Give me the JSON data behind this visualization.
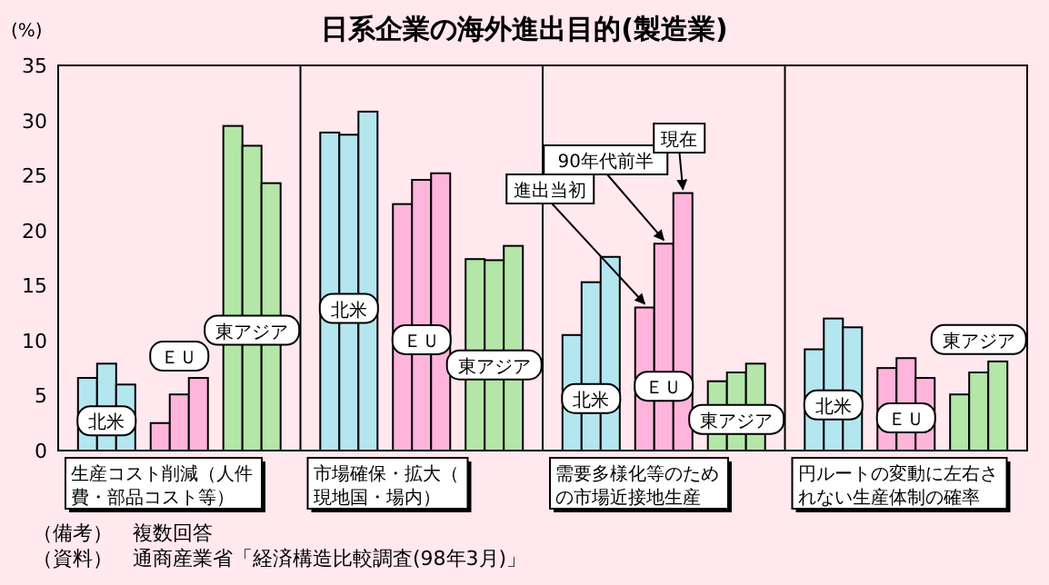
{
  "chart_data": {
    "type": "bar",
    "title": "日系企業の海外進出目的(製造業)",
    "ylabel": "(%)",
    "categories": [
      "北米",
      "ＥＵ",
      "東アジア",
      "北米",
      "ＥＵ",
      "東アジア",
      "北米",
      "ＥＵ",
      "東アジア",
      "北米",
      "ＥＵ",
      "東アジア"
    ],
    "series": [
      {
        "name": "進出当初",
        "colors": [
          "#b4e6f0",
          "#ffb4dc",
          "#b4e6a8",
          "#b4e6f0",
          "#ffb4dc",
          "#b4e6a8",
          "#b4e6f0",
          "#ffb4dc",
          "#b4e6a8",
          "#b4e6f0",
          "#ffb4dc",
          "#b4e6a8"
        ],
        "values": [
          6.6,
          2.5,
          29.5,
          28.9,
          22.4,
          17.4,
          10.5,
          13.0,
          6.3,
          9.2,
          7.5,
          5.1
        ]
      },
      {
        "name": "90年代前半",
        "colors": [
          "#b4e6f0",
          "#ffb4dc",
          "#b4e6a8",
          "#b4e6f0",
          "#ffb4dc",
          "#b4e6a8",
          "#b4e6f0",
          "#ffb4dc",
          "#b4e6a8",
          "#b4e6f0",
          "#ffb4dc",
          "#b4e6a8"
        ],
        "values": [
          7.9,
          5.1,
          27.7,
          28.7,
          24.6,
          17.3,
          15.3,
          18.8,
          7.1,
          12.0,
          8.4,
          7.1
        ]
      },
      {
        "name": "現在",
        "colors": [
          "#b4e6f0",
          "#ffb4dc",
          "#b4e6a8",
          "#b4e6f0",
          "#ffb4dc",
          "#b4e6a8",
          "#b4e6f0",
          "#ffb4dc",
          "#b4e6a8",
          "#b4e6f0",
          "#ffb4dc",
          "#b4e6a8"
        ],
        "values": [
          6.0,
          6.6,
          24.3,
          30.8,
          25.2,
          18.6,
          17.6,
          23.4,
          7.9,
          11.2,
          6.6,
          8.1
        ]
      }
    ],
    "ylim": [
      0,
      35
    ],
    "yticks": [
      0,
      5,
      10,
      15,
      20,
      25,
      30,
      35
    ],
    "grid": false,
    "legend": "top",
    "annotations": [
      "生産コスト削減（人件費・部品コスト等）",
      "市場確保・拡大（現地国・場内）",
      "需要多様化等のための市場近接地生産",
      "円ルートの変動に左右されない生産体制の確率",
      "（備考）　複数回答",
      "（資料）　通商産業省「経済構造比較調査(98年3月)」"
    ]
  }
}
